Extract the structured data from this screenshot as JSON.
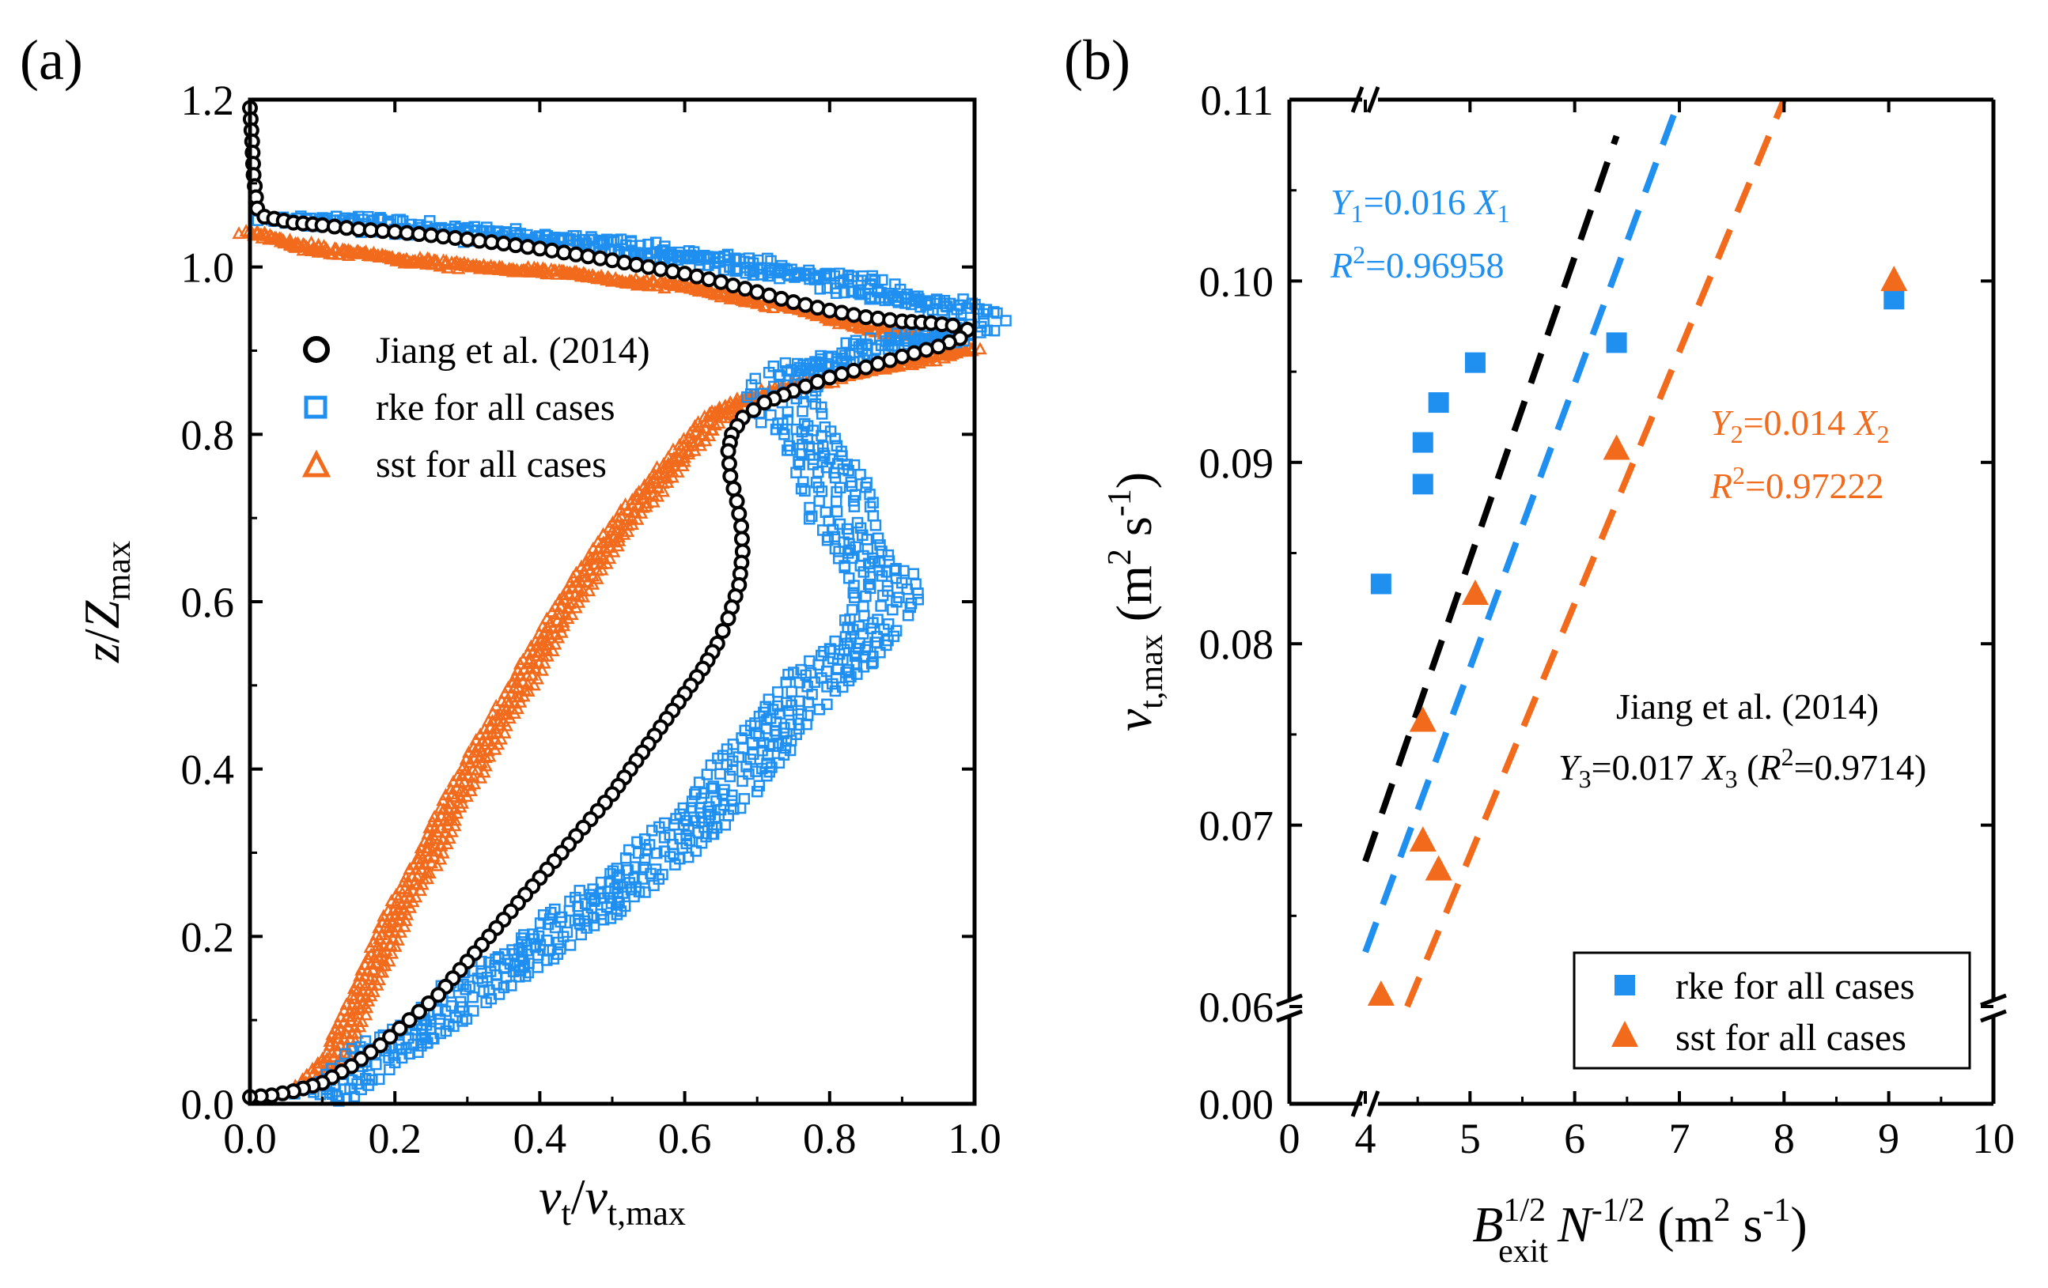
{
  "colors": {
    "jiang": "#000000",
    "rke": "#1f8ff0",
    "sst": "#f26b1d"
  },
  "panel_a": {
    "label": "(a)",
    "xlabel": {
      "v1": "v",
      "sub1": "t",
      "slash": "/",
      "v2": "v",
      "sub2": "t,max"
    },
    "ylabel": {
      "z": "z",
      "slash": "/",
      "Z": "Z",
      "sub": "max"
    },
    "xticks": [
      "0.0",
      "0.2",
      "0.4",
      "0.6",
      "0.8",
      "1.0"
    ],
    "yticks": [
      "0.0",
      "0.2",
      "0.4",
      "0.6",
      "0.8",
      "1.0",
      "1.2"
    ],
    "legend": [
      "Jiang et al. (2014)",
      "rke for all cases",
      "sst for all cases"
    ]
  },
  "panel_b": {
    "label": "(b)",
    "xlabel": {
      "B": "B",
      "sup1": "1/2",
      "sub1": "exit",
      "N": "N",
      "sup2": "-1/2",
      "unit_open": " (m",
      "sup3": "2",
      "unit_close": " s",
      "sup4": "-1",
      "paren": ")"
    },
    "ylabel": {
      "v": "v",
      "sub": "t,max",
      "unit_open": " (m",
      "sup1": "2",
      "unit_s": " s",
      "sup2": "-1",
      "paren": ")"
    },
    "xticks": [
      "0",
      "4",
      "5",
      "6",
      "7",
      "8",
      "9",
      "10"
    ],
    "yticks": [
      "0.00",
      "0.06",
      "0.07",
      "0.08",
      "0.09",
      "0.10",
      "0.11"
    ],
    "legend": [
      "rke for all cases",
      "sst for all cases"
    ],
    "annot_rke": {
      "Y": "Y",
      "sub": "1",
      "eq": "=0.016 ",
      "X": "X",
      "xsub": "1",
      "R": "R",
      "sup": "2",
      "r2": "=0.96958"
    },
    "annot_sst": {
      "Y": "Y",
      "sub": "2",
      "eq": "=0.014 ",
      "X": "X",
      "xsub": "2",
      "R": "R",
      "sup": "2",
      "r2": "=0.97222"
    },
    "annot_jiang": {
      "line1": "Jiang et al. (2014)",
      "Y": "Y",
      "sub": "3",
      "eq": "=0.017 ",
      "X": "X",
      "xsub": "3",
      "open": " (",
      "R": "R",
      "sup": "2",
      "r2": "=0.9714)"
    }
  },
  "chart_data": [
    {
      "type": "scatter",
      "title": "(a)",
      "xlabel": "v_t/v_t,max",
      "ylabel": "z/Z_max",
      "xlim": [
        0,
        1.0
      ],
      "ylim": [
        0,
        1.2
      ],
      "series": [
        {
          "name": "Jiang et al. (2014)",
          "marker": "open-circle",
          "points": [
            [
              0.0,
              1.19
            ],
            [
              0.003,
              1.15
            ],
            [
              0.005,
              1.11
            ],
            [
              0.01,
              1.07
            ],
            [
              0.02,
              1.06
            ],
            [
              0.06,
              1.053
            ],
            [
              0.1,
              1.05
            ],
            [
              0.15,
              1.045
            ],
            [
              0.2,
              1.042
            ],
            [
              0.25,
              1.038
            ],
            [
              0.3,
              1.033
            ],
            [
              0.35,
              1.028
            ],
            [
              0.4,
              1.022
            ],
            [
              0.45,
              1.015
            ],
            [
              0.5,
              1.008
            ],
            [
              0.55,
              1.0
            ],
            [
              0.6,
              0.992
            ],
            [
              0.65,
              0.982
            ],
            [
              0.7,
              0.97
            ],
            [
              0.75,
              0.958
            ],
            [
              0.8,
              0.948
            ],
            [
              0.85,
              0.94
            ],
            [
              0.9,
              0.935
            ],
            [
              0.94,
              0.933
            ],
            [
              0.97,
              0.93
            ],
            [
              0.99,
              0.925
            ],
            [
              0.98,
              0.915
            ],
            [
              0.95,
              0.905
            ],
            [
              0.9,
              0.893
            ],
            [
              0.85,
              0.88
            ],
            [
              0.8,
              0.868
            ],
            [
              0.75,
              0.852
            ],
            [
              0.71,
              0.838
            ],
            [
              0.68,
              0.82
            ],
            [
              0.665,
              0.8
            ],
            [
              0.66,
              0.78
            ],
            [
              0.663,
              0.75
            ],
            [
              0.672,
              0.72
            ],
            [
              0.678,
              0.69
            ],
            [
              0.68,
              0.66
            ],
            [
              0.675,
              0.62
            ],
            [
              0.66,
              0.58
            ],
            [
              0.645,
              0.55
            ],
            [
              0.625,
              0.52
            ],
            [
              0.6,
              0.49
            ],
            [
              0.575,
              0.46
            ],
            [
              0.55,
              0.43
            ],
            [
              0.525,
              0.4
            ],
            [
              0.5,
              0.37
            ],
            [
              0.47,
              0.34
            ],
            [
              0.44,
              0.31
            ],
            [
              0.41,
              0.28
            ],
            [
              0.38,
              0.25
            ],
            [
              0.35,
              0.22
            ],
            [
              0.32,
              0.19
            ],
            [
              0.29,
              0.16
            ],
            [
              0.26,
              0.13
            ],
            [
              0.22,
              0.1
            ],
            [
              0.18,
              0.07
            ],
            [
              0.14,
              0.045
            ],
            [
              0.1,
              0.025
            ],
            [
              0.06,
              0.015
            ],
            [
              0.03,
              0.01
            ],
            [
              0.0,
              0.008
            ]
          ]
        },
        {
          "name": "rke for all cases",
          "marker": "open-square",
          "points": [
            [
              0.05,
              1.06
            ],
            [
              0.15,
              1.052
            ],
            [
              0.3,
              1.04
            ],
            [
              0.45,
              1.03
            ],
            [
              0.6,
              1.012
            ],
            [
              0.7,
              1.0
            ],
            [
              0.8,
              0.985
            ],
            [
              0.9,
              0.965
            ],
            [
              0.97,
              0.948
            ],
            [
              1.0,
              0.935
            ],
            [
              0.96,
              0.92
            ],
            [
              0.88,
              0.905
            ],
            [
              0.8,
              0.89
            ],
            [
              0.75,
              0.87
            ],
            [
              0.73,
              0.84
            ],
            [
              0.77,
              0.8
            ],
            [
              0.8,
              0.75
            ],
            [
              0.82,
              0.7
            ],
            [
              0.85,
              0.65
            ],
            [
              0.88,
              0.61
            ],
            [
              0.86,
              0.57
            ],
            [
              0.82,
              0.53
            ],
            [
              0.78,
              0.5
            ],
            [
              0.73,
              0.46
            ],
            [
              0.7,
              0.42
            ],
            [
              0.66,
              0.38
            ],
            [
              0.62,
              0.34
            ],
            [
              0.57,
              0.3
            ],
            [
              0.51,
              0.26
            ],
            [
              0.45,
              0.22
            ],
            [
              0.38,
              0.18
            ],
            [
              0.3,
              0.13
            ],
            [
              0.22,
              0.08
            ],
            [
              0.15,
              0.04
            ],
            [
              0.1,
              0.01
            ]
          ]
        },
        {
          "name": "sst for all cases",
          "marker": "open-triangle",
          "points": [
            [
              0.0,
              1.04
            ],
            [
              0.1,
              1.02
            ],
            [
              0.2,
              1.01
            ],
            [
              0.3,
              1.0
            ],
            [
              0.4,
              0.995
            ],
            [
              0.5,
              0.985
            ],
            [
              0.6,
              0.975
            ],
            [
              0.7,
              0.96
            ],
            [
              0.8,
              0.94
            ],
            [
              0.9,
              0.92
            ],
            [
              0.95,
              0.91
            ],
            [
              0.99,
              0.9
            ],
            [
              0.96,
              0.895
            ],
            [
              0.9,
              0.885
            ],
            [
              0.82,
              0.87
            ],
            [
              0.74,
              0.855
            ],
            [
              0.68,
              0.84
            ],
            [
              0.64,
              0.82
            ],
            [
              0.6,
              0.78
            ],
            [
              0.56,
              0.74
            ],
            [
              0.52,
              0.7
            ],
            [
              0.48,
              0.65
            ],
            [
              0.44,
              0.6
            ],
            [
              0.4,
              0.54
            ],
            [
              0.36,
              0.48
            ],
            [
              0.32,
              0.42
            ],
            [
              0.28,
              0.36
            ],
            [
              0.25,
              0.3
            ],
            [
              0.21,
              0.24
            ],
            [
              0.18,
              0.18
            ],
            [
              0.15,
              0.12
            ],
            [
              0.12,
              0.06
            ],
            [
              0.08,
              0.02
            ]
          ]
        }
      ]
    },
    {
      "type": "scatter",
      "title": "(b)",
      "xlabel": "B_exit^1/2 N^-1/2 (m^2 s^-1)",
      "ylabel": "v_t,max (m^2 s^-1)",
      "xlim": [
        0,
        10
      ],
      "x_break": [
        0,
        4
      ],
      "ylim": [
        0.0,
        0.11
      ],
      "y_break": [
        0.0,
        0.06
      ],
      "series": [
        {
          "name": "rke for all cases",
          "marker": "filled-square",
          "points": [
            [
              4.15,
              0.0833
            ],
            [
              4.55,
              0.0888
            ],
            [
              4.55,
              0.0911
            ],
            [
              4.7,
              0.0933
            ],
            [
              5.05,
              0.0955
            ],
            [
              6.4,
              0.0966
            ],
            [
              9.05,
              0.099
            ]
          ]
        },
        {
          "name": "sst for all cases",
          "marker": "filled-triangle",
          "points": [
            [
              4.15,
              0.0607
            ],
            [
              4.55,
              0.0692
            ],
            [
              4.7,
              0.0676
            ],
            [
              4.55,
              0.0758
            ],
            [
              5.05,
              0.0828
            ],
            [
              6.4,
              0.0908
            ],
            [
              9.05,
              0.1001
            ]
          ]
        }
      ],
      "fit_lines": [
        {
          "name": "Jiang et al. (2014)",
          "equation": "Y3=0.017 X3",
          "r2": 0.9714,
          "x": [
            4.0,
            6.4
          ],
          "y": [
            0.068,
            0.108
          ]
        },
        {
          "name": "rke fit",
          "equation": "Y1=0.016 X1",
          "r2": 0.96958,
          "x": [
            4.0,
            7.0
          ],
          "y": [
            0.063,
            0.11
          ]
        },
        {
          "name": "sst fit",
          "equation": "Y2=0.014 X2",
          "r2": 0.97222,
          "x": [
            4.4,
            8.0
          ],
          "y": [
            0.06,
            0.11
          ]
        }
      ]
    }
  ]
}
